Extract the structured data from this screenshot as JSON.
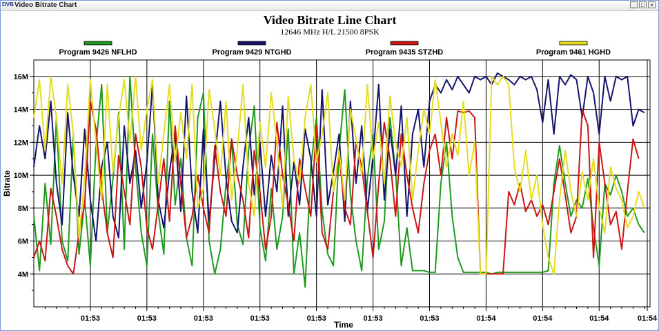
{
  "window": {
    "icon_text": "DVB",
    "title": "Video Bitrate Chart",
    "buttons": {
      "minimize": "_",
      "maximize": "□",
      "close": "×"
    }
  },
  "chart_data": {
    "type": "line",
    "title": "Video Bitrate Line Chart",
    "subtitle": "12646 MHz H/L 21500 8PSK",
    "xlabel": "Time",
    "ylabel": "Bitrate",
    "ylim": [
      2000000,
      17000000
    ],
    "xlim": [
      0,
      109
    ],
    "grid": true,
    "legend_position": "top",
    "y_ticks": [
      {
        "value": 4000000,
        "label": "4M"
      },
      {
        "value": 6000000,
        "label": "6M"
      },
      {
        "value": 8000000,
        "label": "8M"
      },
      {
        "value": 10000000,
        "label": "10M"
      },
      {
        "value": 12000000,
        "label": "12M"
      },
      {
        "value": 14000000,
        "label": "14M"
      },
      {
        "value": 16000000,
        "label": "16M"
      }
    ],
    "x_ticks": [
      {
        "value": 10,
        "label": "01:53"
      },
      {
        "value": 20,
        "label": "01:53"
      },
      {
        "value": 30,
        "label": "01:53"
      },
      {
        "value": 40,
        "label": "01:53"
      },
      {
        "value": 50,
        "label": "01:53"
      },
      {
        "value": 60,
        "label": "01:53"
      },
      {
        "value": 70,
        "label": "01:53"
      },
      {
        "value": 80,
        "label": "01:54"
      },
      {
        "value": 90,
        "label": "01:54"
      },
      {
        "value": 100,
        "label": "01:54"
      },
      {
        "value": 110,
        "label": "01:54"
      }
    ],
    "series": [
      {
        "name": "Program 9426 NFLHD",
        "color": "#1f9a1f",
        "values": [
          7.5,
          4.2,
          9.5,
          5.8,
          13.5,
          6,
          4.8,
          12.5,
          5.2,
          8.5,
          4.5,
          11.8,
          15.5,
          6.5,
          9.8,
          13.8,
          5.5,
          16,
          10.5,
          6.5,
          4.5,
          12.5,
          7.8,
          5.2,
          14.5,
          8.2,
          11,
          6.2,
          4.5,
          13.5,
          15,
          6,
          4,
          5.5,
          9.5,
          12.2,
          7,
          5.8,
          11.5,
          14.2,
          6.8,
          4.8,
          9.2,
          5.5,
          7.5,
          12.8,
          4,
          6.5,
          3.2,
          10.5,
          13.5,
          7.8,
          5.2,
          4.5,
          11.5,
          15.2,
          8.8,
          6,
          4.2,
          9.8,
          12.5,
          5.5,
          7.2,
          13.5,
          10.2,
          4.5,
          6.8,
          4.2,
          4.2,
          4.2,
          4.1,
          4.1,
          9.5,
          12,
          7.5,
          5,
          4.1,
          4.1,
          4.1,
          4.1,
          4.1,
          4,
          4.1,
          4.1,
          4.1,
          4.1,
          4.1,
          4.1,
          4.1,
          4.1,
          4.1,
          4.2,
          9.5,
          11.8,
          9.5,
          7.5,
          8.5,
          8,
          9.8,
          6.8,
          4.5,
          9.5,
          8.8,
          10,
          9,
          7.5,
          8,
          7,
          6.5
        ]
      },
      {
        "name": "Program 9429 NTGHD",
        "color": "#14146e",
        "values": [
          10.5,
          13,
          11,
          14.5,
          9.5,
          7,
          13.8,
          10,
          7.5,
          12.8,
          8.5,
          6,
          10.5,
          12,
          7.5,
          6.2,
          13,
          9.5,
          11.5,
          8,
          10.8,
          15.5,
          8.5,
          6.8,
          10.2,
          12.5,
          7.8,
          14.8,
          9,
          6.5,
          12.8,
          7.2,
          11,
          14.5,
          9.8,
          7.2,
          6.5,
          10.5,
          13.5,
          8.8,
          12,
          7.5,
          11.2,
          9,
          14.2,
          7.5,
          10.8,
          8.2,
          12.8,
          11,
          7.5,
          15.2,
          8.2,
          10.2,
          12.5,
          7.2,
          14.5,
          9.5,
          13,
          7.8,
          11.2,
          15.5,
          8.5,
          12.8,
          10,
          14.2,
          7.5,
          12.5,
          14,
          10.5,
          14.5,
          15.5,
          15,
          15.8,
          15.2,
          16,
          15.5,
          15,
          16,
          15.8,
          16,
          15.5,
          16.2,
          16,
          15.8,
          15.5,
          16,
          15.8,
          16,
          15.2,
          13.2,
          15.8,
          12.5,
          16,
          15.5,
          16.1,
          15.8,
          13.5,
          16,
          15,
          12.5,
          16,
          14.5,
          16,
          15.8,
          16,
          13,
          14,
          13.8
        ]
      },
      {
        "name": "Program 9435 STZHD",
        "color": "#cc1414",
        "values": [
          5,
          6,
          4.8,
          9.2,
          7.5,
          5.5,
          4.5,
          4,
          6.5,
          8.2,
          14.5,
          12.8,
          9.2,
          6.5,
          5,
          11.2,
          9,
          7,
          12.5,
          10.5,
          6.8,
          5.5,
          8.2,
          11,
          7.2,
          13,
          9.5,
          6.2,
          7.5,
          10,
          8,
          6.5,
          11.8,
          9,
          7.5,
          12.2,
          10,
          8.5,
          6.2,
          11.5,
          9,
          5.5,
          7.5,
          13.2,
          10,
          8.2,
          6,
          11,
          9.2,
          7.5,
          13,
          6.5,
          5.5,
          9,
          11.2,
          8,
          7,
          12,
          10.5,
          7.8,
          5,
          9.5,
          13.2,
          11,
          7.5,
          12.5,
          10,
          8,
          6.5,
          9.5,
          11.5,
          12.5,
          10,
          13.5,
          11,
          13.9,
          13.8,
          13.9,
          13.5,
          4,
          4,
          4,
          4,
          4,
          9,
          8.2,
          9.5,
          7.8,
          8.5,
          7.5,
          8.2,
          7,
          9,
          11,
          8.8,
          6.5,
          7.5,
          14,
          13,
          5,
          12,
          9.5,
          7,
          7.8,
          5.5,
          9,
          12.2,
          11
        ]
      },
      {
        "name": "Program 9461 HGHD",
        "color": "#e6dc1e",
        "values": [
          13.5,
          15.8,
          11.5,
          16,
          13.5,
          9.5,
          15.5,
          12.5,
          6.2,
          9.8,
          15.8,
          12,
          8.5,
          15.5,
          10.2,
          13.5,
          15.8,
          12,
          16,
          11.5,
          14,
          15.8,
          9.5,
          12.5,
          15.5,
          10.8,
          13.8,
          11,
          15.5,
          8,
          9.2,
          15.2,
          12.8,
          10,
          14.5,
          8.5,
          11.5,
          15.5,
          9.5,
          7.5,
          13.2,
          10.5,
          15,
          12,
          8,
          14.8,
          11,
          9.5,
          13.5,
          15.5,
          10.8,
          12.5,
          15,
          9,
          11.5,
          8.5,
          14,
          12.2,
          10,
          15.5,
          11,
          13.2,
          9.5,
          14.8,
          12,
          10.5,
          13.5,
          8.5,
          11.5,
          14,
          12.5,
          15.8,
          13.2,
          10.5,
          12.5,
          11.2,
          14.5,
          10,
          12,
          4,
          4,
          16,
          15.5,
          16,
          15.5,
          10.5,
          9,
          11.5,
          8.5,
          10,
          7,
          5,
          4,
          8.5,
          11.5,
          9,
          7.5,
          10.2,
          8.5,
          11,
          8,
          6.5,
          10.5,
          9.2,
          8.5,
          6.8,
          7.5,
          9,
          8
        ]
      }
    ]
  }
}
